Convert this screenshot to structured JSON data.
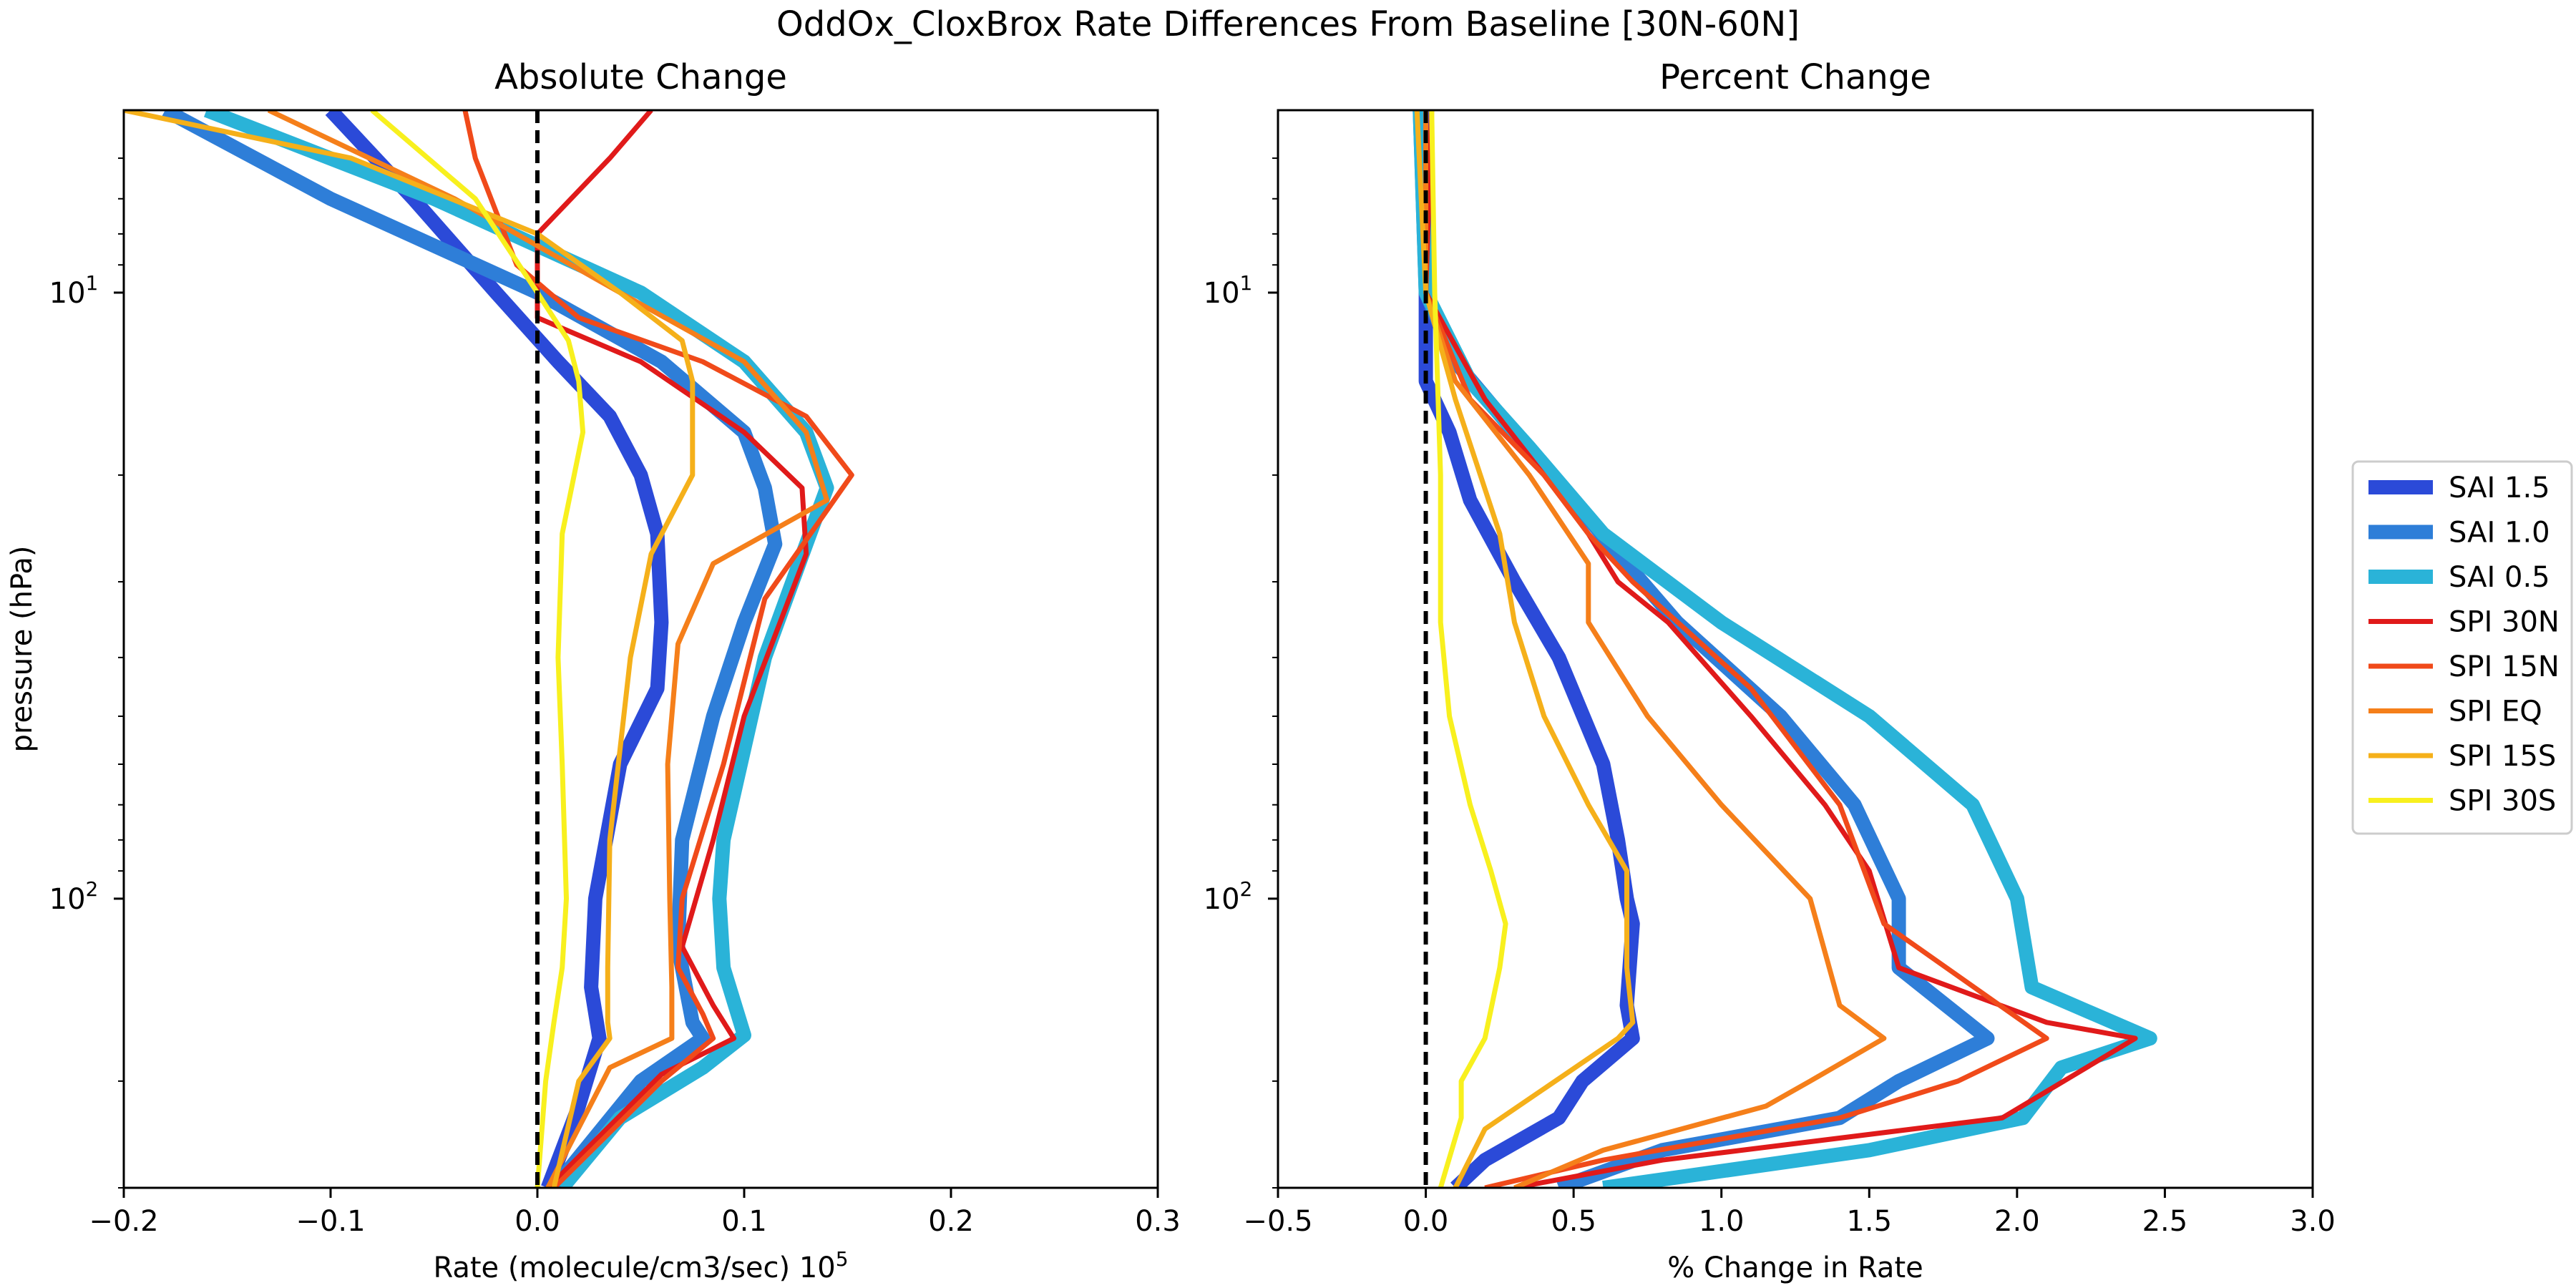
{
  "figure": {
    "suptitle": "OddOx_CloxBrox Rate Differences From Baseline [30N-60N]"
  },
  "legend": {
    "placement": "outside-right",
    "entries": [
      {
        "label": "SAI 1.5",
        "color": "#2b4ad8"
      },
      {
        "label": "SAI 1.0",
        "color": "#2e7ed8"
      },
      {
        "label": "SAI 0.5",
        "color": "#2ab3d8"
      },
      {
        "label": "SPI 30N",
        "color": "#e01a1a"
      },
      {
        "label": "SPI 15N",
        "color": "#f04a1a"
      },
      {
        "label": "SPI EQ",
        "color": "#f57f1a"
      },
      {
        "label": "SPI 15S",
        "color": "#f5b01a"
      },
      {
        "label": "SPI 30S",
        "color": "#f8f01e"
      }
    ]
  },
  "chart_data": [
    {
      "type": "line",
      "title": "Absolute Change",
      "xlabel": "Rate (molecule/cm3/sec) 10",
      "xlabel_exp": "5",
      "ylabel": "pressure (hPa)",
      "xlim": [
        -0.2,
        0.3
      ],
      "ylim": [
        300,
        5
      ],
      "yscale": "log",
      "xticks": [
        -0.2,
        -0.1,
        0.0,
        0.1,
        0.2,
        0.3
      ],
      "xtick_labels": [
        "−0.2",
        "−0.1",
        "0.0",
        "0.1",
        "0.2",
        "0.3"
      ],
      "yticks": [
        {
          "value": 10,
          "base": "10",
          "exp": "1"
        },
        {
          "value": 100,
          "base": "10",
          "exp": "2"
        }
      ],
      "zero_line": 0,
      "series": [
        {
          "name": "SAI 1.5",
          "x": [
            -0.1,
            -0.06,
            -0.02,
            0.01,
            0.035,
            0.05,
            0.058,
            0.06,
            0.058,
            0.04,
            0.028,
            0.026,
            0.03,
            0.02,
            0.005
          ],
          "y": [
            5,
            7,
            10,
            13,
            16,
            20,
            25,
            35,
            45,
            60,
            100,
            140,
            170,
            220,
            300
          ]
        },
        {
          "name": "SAI 1.0",
          "x": [
            -0.18,
            -0.1,
            0.0,
            0.06,
            0.1,
            0.11,
            0.115,
            0.1,
            0.085,
            0.07,
            0.068,
            0.075,
            0.08,
            0.05,
            0.008
          ],
          "y": [
            5,
            7,
            10,
            13,
            17,
            21,
            26,
            35,
            50,
            80,
            120,
            160,
            170,
            200,
            300
          ]
        },
        {
          "name": "SAI 0.5",
          "x": [
            -0.16,
            -0.05,
            0.05,
            0.1,
            0.13,
            0.14,
            0.13,
            0.11,
            0.09,
            0.088,
            0.09,
            0.1,
            0.08,
            0.04,
            0.012
          ],
          "y": [
            5,
            7,
            10,
            13,
            17,
            21,
            26,
            40,
            80,
            100,
            130,
            168,
            190,
            230,
            300
          ]
        },
        {
          "name": "SPI 30N",
          "x": [
            0.055,
            0.035,
            0.0,
            0.0,
            0.05,
            0.1,
            0.128,
            0.13,
            0.1,
            0.085,
            0.07,
            0.085,
            0.095,
            0.06,
            0.005
          ],
          "y": [
            5,
            6,
            8,
            11,
            13,
            17,
            21,
            27,
            50,
            80,
            120,
            150,
            170,
            195,
            300
          ]
        },
        {
          "name": "SPI 15N",
          "x": [
            -0.035,
            -0.03,
            -0.01,
            0.02,
            0.08,
            0.13,
            0.152,
            0.11,
            0.09,
            0.07,
            0.068,
            0.08,
            0.085,
            0.06,
            0.008
          ],
          "y": [
            5,
            6,
            9,
            11,
            13,
            16,
            20,
            32,
            60,
            100,
            130,
            155,
            170,
            200,
            300
          ]
        },
        {
          "name": "SPI EQ",
          "x": [
            -0.13,
            -0.04,
            0.04,
            0.1,
            0.13,
            0.14,
            0.085,
            0.068,
            0.063,
            0.064,
            0.065,
            0.065,
            0.035,
            0.005
          ],
          "y": [
            5,
            7,
            10,
            13,
            17,
            22,
            28,
            38,
            60,
            100,
            140,
            170,
            190,
            300
          ]
        },
        {
          "name": "SPI 15S",
          "x": [
            -0.2,
            -0.09,
            0.0,
            0.04,
            0.07,
            0.075,
            0.075,
            0.055,
            0.045,
            0.035,
            0.034,
            0.034,
            0.035,
            0.02,
            0.008
          ],
          "y": [
            5,
            6,
            8,
            10,
            12,
            14,
            20,
            27,
            40,
            80,
            130,
            160,
            170,
            200,
            300
          ]
        },
        {
          "name": "SPI 30S",
          "x": [
            -0.08,
            -0.03,
            0.0,
            0.015,
            0.02,
            0.022,
            0.012,
            0.01,
            0.012,
            0.014,
            0.012,
            0.008,
            0.004,
            0.0
          ],
          "y": [
            5,
            7,
            10,
            12,
            14,
            17,
            25,
            40,
            60,
            100,
            130,
            160,
            200,
            300
          ]
        }
      ]
    },
    {
      "type": "line",
      "title": "Percent Change",
      "xlabel": "% Change in Rate",
      "ylabel": "",
      "xlim": [
        -0.5,
        3.0
      ],
      "ylim": [
        300,
        5
      ],
      "yscale": "log",
      "xticks": [
        -0.5,
        0.0,
        0.5,
        1.0,
        1.5,
        2.0,
        2.5,
        3.0
      ],
      "xtick_labels": [
        "−0.5",
        "0.0",
        "0.5",
        "1.0",
        "1.5",
        "2.0",
        "2.5",
        "3.0"
      ],
      "yticks": [
        {
          "value": 10,
          "base": "10",
          "exp": "1"
        },
        {
          "value": 100,
          "base": "10",
          "exp": "2"
        }
      ],
      "zero_line": 0,
      "series": [
        {
          "name": "SAI 1.5",
          "x": [
            0.0,
            0.0,
            0.0,
            0.08,
            0.15,
            0.3,
            0.45,
            0.6,
            0.65,
            0.68,
            0.7,
            0.68,
            0.7,
            0.53,
            0.45,
            0.2,
            0.1
          ],
          "y": [
            5,
            10,
            14,
            17,
            22,
            30,
            40,
            60,
            80,
            100,
            110,
            150,
            170,
            200,
            230,
            270,
            300
          ]
        },
        {
          "name": "SAI 1.0",
          "x": [
            -0.02,
            0.0,
            0.1,
            0.3,
            0.5,
            0.65,
            0.85,
            1.2,
            1.45,
            1.6,
            1.6,
            1.9,
            1.6,
            1.4,
            0.8,
            0.45
          ],
          "y": [
            5,
            10,
            13,
            17,
            22,
            27,
            35,
            50,
            70,
            100,
            130,
            170,
            200,
            230,
            260,
            300
          ]
        },
        {
          "name": "SAI 0.5",
          "x": [
            -0.02,
            0.0,
            0.15,
            0.35,
            0.6,
            1.0,
            1.5,
            1.85,
            2.0,
            2.05,
            2.45,
            2.15,
            2.02,
            1.5,
            0.6
          ],
          "y": [
            5,
            10,
            14,
            18,
            25,
            35,
            50,
            70,
            100,
            140,
            170,
            190,
            230,
            260,
            300
          ]
        },
        {
          "name": "SPI 30N",
          "x": [
            0.02,
            0.0,
            0.2,
            0.4,
            0.55,
            0.65,
            0.82,
            1.1,
            1.35,
            1.5,
            1.6,
            2.1,
            2.4,
            1.95,
            0.8,
            0.3
          ],
          "y": [
            5,
            10,
            15,
            20,
            25,
            30,
            35,
            50,
            70,
            90,
            130,
            160,
            170,
            230,
            270,
            300
          ]
        },
        {
          "name": "SPI 15N",
          "x": [
            0.0,
            0.0,
            0.15,
            0.4,
            0.55,
            0.7,
            1.1,
            1.4,
            1.55,
            2.1,
            1.8,
            1.4,
            0.6,
            0.2
          ],
          "y": [
            5,
            10,
            15,
            20,
            25,
            30,
            45,
            70,
            110,
            170,
            200,
            230,
            270,
            300
          ]
        },
        {
          "name": "SPI EQ",
          "x": [
            0.0,
            0.0,
            0.1,
            0.35,
            0.55,
            0.55,
            0.75,
            1.0,
            1.3,
            1.4,
            1.55,
            1.3,
            1.15,
            0.6,
            0.3
          ],
          "y": [
            5,
            10,
            14,
            20,
            28,
            35,
            50,
            70,
            100,
            150,
            170,
            200,
            220,
            260,
            300
          ]
        },
        {
          "name": "SPI 15S",
          "x": [
            -0.03,
            0.0,
            0.1,
            0.25,
            0.3,
            0.4,
            0.55,
            0.68,
            0.68,
            0.7,
            0.65,
            0.2,
            0.1
          ],
          "y": [
            5,
            10,
            15,
            25,
            35,
            50,
            70,
            90,
            130,
            160,
            170,
            240,
            300
          ]
        },
        {
          "name": "SPI 30S",
          "x": [
            0.02,
            0.03,
            0.05,
            0.05,
            0.08,
            0.15,
            0.22,
            0.27,
            0.25,
            0.2,
            0.12,
            0.12,
            0.05
          ],
          "y": [
            5,
            10,
            20,
            35,
            50,
            70,
            90,
            110,
            130,
            170,
            200,
            230,
            300
          ]
        }
      ]
    }
  ]
}
